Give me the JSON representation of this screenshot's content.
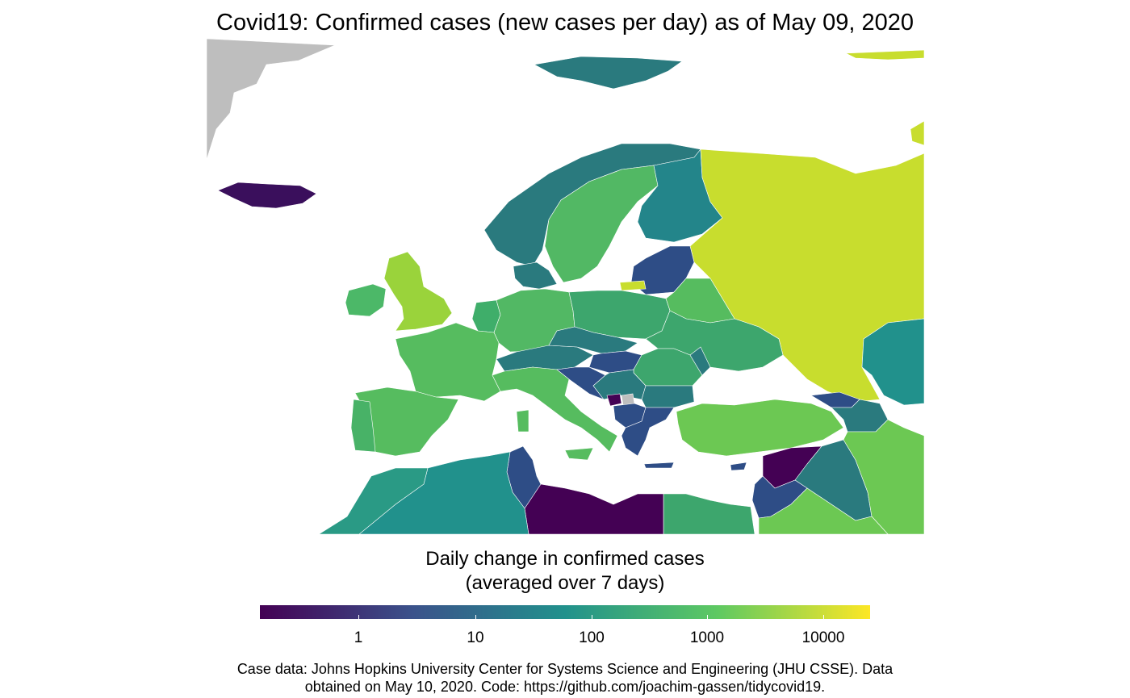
{
  "title": "Covid19: Confirmed cases (new cases per day) as of May 09, 2020",
  "legend": {
    "title_line1": "Daily change in confirmed cases",
    "title_line2": "(averaged over 7 days)",
    "scale": "log10",
    "palette": "viridis",
    "colors": [
      "#440154",
      "#3b528b",
      "#21918c",
      "#5ec962",
      "#fde725"
    ],
    "ticks": [
      "1",
      "10",
      "100",
      "1000",
      "10000"
    ],
    "no_data_color": "#bebebe"
  },
  "caption": {
    "line1": "Case data: Johns Hopkins University Center for Systems Science and Engineering (JHU CSSE). Data",
    "line2": "obtained on May 10, 2020. Code: https://github.com/joachim-gassen/tidycovid19."
  },
  "regions": {
    "greenland": "#bebebe",
    "iceland": "#3a0f5c",
    "norway": "#2a7a7e",
    "svalbard": "#2a7a7e",
    "sweden": "#52b864",
    "finland": "#23858a",
    "russia": "#c8dd2e",
    "estonia_latvia_lithuania": "#2e4d86",
    "kaliningrad": "#c8dd2e",
    "uk": "#9ad33b",
    "ireland": "#4cb868",
    "denmark": "#2a7a7e",
    "netherlands_belgium": "#3fae6a",
    "germany": "#52b864",
    "poland": "#3da66d",
    "belarus": "#56bc5f",
    "ukraine": "#3da66d",
    "france": "#56bc5f",
    "spain": "#56bc5f",
    "portugal": "#48b267",
    "switzerland_austria": "#2a7a7e",
    "czechia_slovakia": "#2a7a7e",
    "hungary": "#2e4d86",
    "slovenia_croatia": "#2e4d86",
    "italy": "#56bc5f",
    "romania": "#3da66d",
    "moldova": "#2a7a7e",
    "serbia_bih": "#2a7a7e",
    "montenegro": "#440154",
    "kosovo": "#bebebe",
    "albania_nmacedonia": "#2e4d86",
    "bulgaria": "#2a7a7e",
    "greece": "#2e4d86",
    "turkey": "#6cc853",
    "georgia": "#2e4d86",
    "armenia_azerbaijan": "#2a7a7e",
    "kazakhstan": "#21918c",
    "syria": "#440154",
    "iraq": "#2a7a7e",
    "iran": "#6cc853",
    "lebanon_israel_jordan": "#2e4d86",
    "saudi_arabia": "#6cc853",
    "egypt": "#3da66d",
    "libya": "#440154",
    "tunisia": "#2e4d86",
    "algeria": "#21918c",
    "morocco": "#2a9a85",
    "cyprus": "#2e4d86"
  }
}
